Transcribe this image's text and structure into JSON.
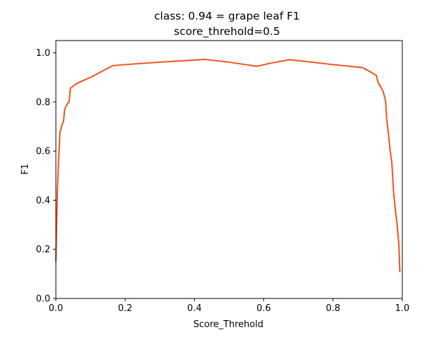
{
  "chart_data": {
    "type": "line",
    "title": "class: 0.94 = grape leaf F1",
    "subtitle": "score_threhold=0.5",
    "xlabel": "Score_Threhold",
    "ylabel": "F1",
    "xlim": [
      0.0,
      1.0
    ],
    "ylim": [
      0.0,
      1.05
    ],
    "xticks": [
      "0.0",
      "0.2",
      "0.4",
      "0.6",
      "0.8",
      "1.0"
    ],
    "yticks": [
      "0.0",
      "0.2",
      "0.4",
      "0.6",
      "0.8",
      "1.0"
    ],
    "grid": false,
    "legend": "none",
    "series": [
      {
        "color": "#f4511e",
        "x": [
          0.0,
          0.002,
          0.004,
          0.006,
          0.008,
          0.01,
          0.012,
          0.015,
          0.018,
          0.022,
          0.025,
          0.028,
          0.032,
          0.038,
          0.042,
          0.046,
          0.055,
          0.065,
          0.08,
          0.1,
          0.12,
          0.14,
          0.165,
          0.2,
          0.3,
          0.43,
          0.5,
          0.58,
          0.62,
          0.675,
          0.72,
          0.8,
          0.885,
          0.905,
          0.925,
          0.93,
          0.935,
          0.94,
          0.945,
          0.95,
          0.952,
          0.955,
          0.96,
          0.965,
          0.97,
          0.972,
          0.975,
          0.98,
          0.985,
          0.99,
          0.993
        ],
        "y": [
          0.15,
          0.28,
          0.42,
          0.5,
          0.57,
          0.62,
          0.68,
          0.69,
          0.71,
          0.72,
          0.765,
          0.78,
          0.79,
          0.8,
          0.855,
          0.86,
          0.87,
          0.878,
          0.888,
          0.9,
          0.915,
          0.93,
          0.948,
          0.952,
          0.962,
          0.973,
          0.962,
          0.945,
          0.958,
          0.972,
          0.965,
          0.952,
          0.94,
          0.925,
          0.908,
          0.88,
          0.868,
          0.855,
          0.84,
          0.815,
          0.8,
          0.73,
          0.67,
          0.6,
          0.55,
          0.5,
          0.43,
          0.36,
          0.3,
          0.22,
          0.107
        ]
      }
    ]
  }
}
